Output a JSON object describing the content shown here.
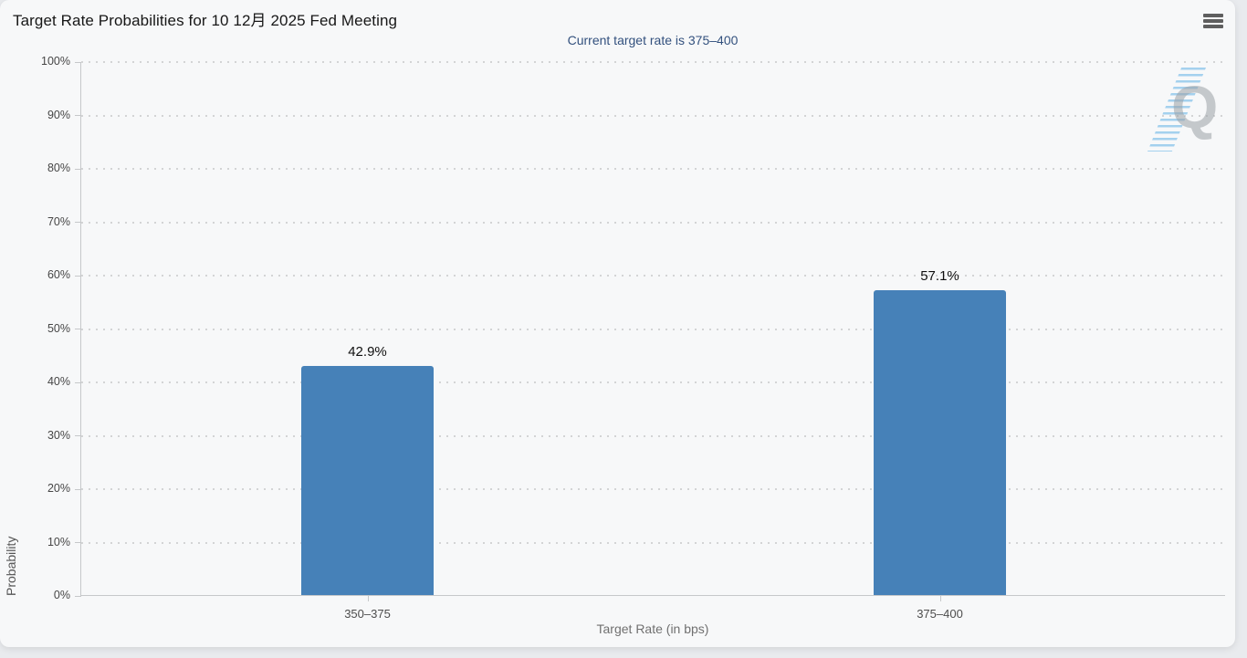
{
  "header": {
    "title": "Target Rate Probabilities for 10 12月 2025 Fed Meeting"
  },
  "chart_data": {
    "type": "bar",
    "title": "Target Rate Probabilities for 10 12月 2025 Fed Meeting",
    "subtitle": "Current target rate is 375–400",
    "categories": [
      "350–375",
      "375–400"
    ],
    "values": [
      42.9,
      57.1
    ],
    "value_labels": [
      "42.9%",
      "57.1%"
    ],
    "xlabel": "Target Rate (in bps)",
    "ylabel": "Probability",
    "ylim": [
      0,
      100
    ],
    "ytick_labels": [
      "0%",
      "10%",
      "20%",
      "30%",
      "40%",
      "50%",
      "60%",
      "70%",
      "80%",
      "90%",
      "100%"
    ],
    "grid": "dotted-horizontal",
    "legend": "none",
    "bar_color": "#4681b8",
    "subtitle_color": "#33517e"
  },
  "watermark": {
    "letter": "Q"
  }
}
